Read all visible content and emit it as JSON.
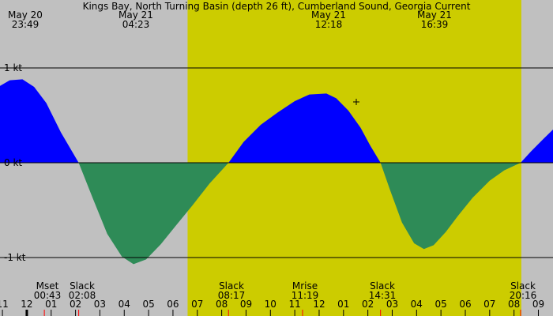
{
  "title": "Kings Bay, North Turning Basin (depth 26 ft), Cumberland Sound, Georgia Current",
  "colors": {
    "night": "#c0c0c0",
    "day": "#cccc00",
    "flood": "#0000ff",
    "ebb": "#2e8b57",
    "gridline": "#000000",
    "event_tick": "#ff0000"
  },
  "top_events": [
    {
      "date": "May 20",
      "time": "23:49"
    },
    {
      "date": "May 21",
      "time": "04:23"
    },
    {
      "date": "May 21",
      "time": "12:18"
    },
    {
      "date": "May 21",
      "time": "16:39"
    }
  ],
  "bottom_events": [
    {
      "label": "Mset",
      "time": "00:43"
    },
    {
      "label": "Slack",
      "time": "02:08"
    },
    {
      "label": "Slack",
      "time": "08:17"
    },
    {
      "label": "Mrise",
      "time": "11:19"
    },
    {
      "label": "Slack",
      "time": "14:31"
    },
    {
      "label": "Slack",
      "time": "20:16"
    }
  ],
  "chart_data": {
    "type": "area",
    "title": "Kings Bay, North Turning Basin (depth 26 ft), Cumberland Sound, Georgia Current",
    "ylabel": "",
    "y_ticks": [
      "1 kt",
      "0 kt",
      "-1 kt"
    ],
    "ylim": [
      -1.3,
      1.6
    ],
    "x_ticks": [
      "11",
      "12",
      "01",
      "02",
      "03",
      "04",
      "05",
      "06",
      "07",
      "08",
      "09",
      "10",
      "11",
      "12",
      "01",
      "02",
      "03",
      "04",
      "05",
      "06",
      "07",
      "08",
      "09"
    ],
    "x_tick_hours": [
      23,
      24,
      25,
      26,
      27,
      28,
      29,
      30,
      31,
      32,
      33,
      34,
      35,
      36,
      37,
      38,
      39,
      40,
      41,
      42,
      43,
      44,
      45
    ],
    "xlim_hours": [
      22.9,
      45.6
    ],
    "daylight_hours": [
      30.6,
      44.3
    ],
    "event_marker_hours": [
      24.72,
      26.13,
      32.28,
      35.32,
      38.52,
      44.27
    ],
    "series": [
      {
        "name": "",
        "x_hours": [
          22.9,
          23.3,
          23.82,
          24.3,
          24.8,
          25.4,
          26.13,
          26.7,
          27.3,
          27.9,
          28.38,
          28.9,
          29.5,
          30.1,
          30.8,
          31.5,
          32.28,
          32.9,
          33.6,
          34.3,
          35.0,
          35.6,
          36.3,
          36.7,
          37.2,
          37.7,
          38.1,
          38.52,
          38.9,
          39.4,
          39.9,
          40.3,
          40.7,
          41.2,
          41.7,
          42.3,
          43.0,
          43.6,
          44.27,
          44.7,
          45.2,
          45.6
        ],
        "values": [
          0.81,
          0.87,
          0.88,
          0.8,
          0.63,
          0.32,
          0.0,
          -0.37,
          -0.75,
          -0.99,
          -1.07,
          -1.02,
          -0.86,
          -0.67,
          -0.45,
          -0.22,
          0.0,
          0.22,
          0.4,
          0.53,
          0.65,
          0.72,
          0.73,
          0.68,
          0.55,
          0.37,
          0.18,
          0.0,
          -0.28,
          -0.63,
          -0.85,
          -0.91,
          -0.87,
          -0.73,
          -0.56,
          -0.37,
          -0.19,
          -0.08,
          0.0,
          0.12,
          0.25,
          0.35
        ]
      }
    ]
  }
}
